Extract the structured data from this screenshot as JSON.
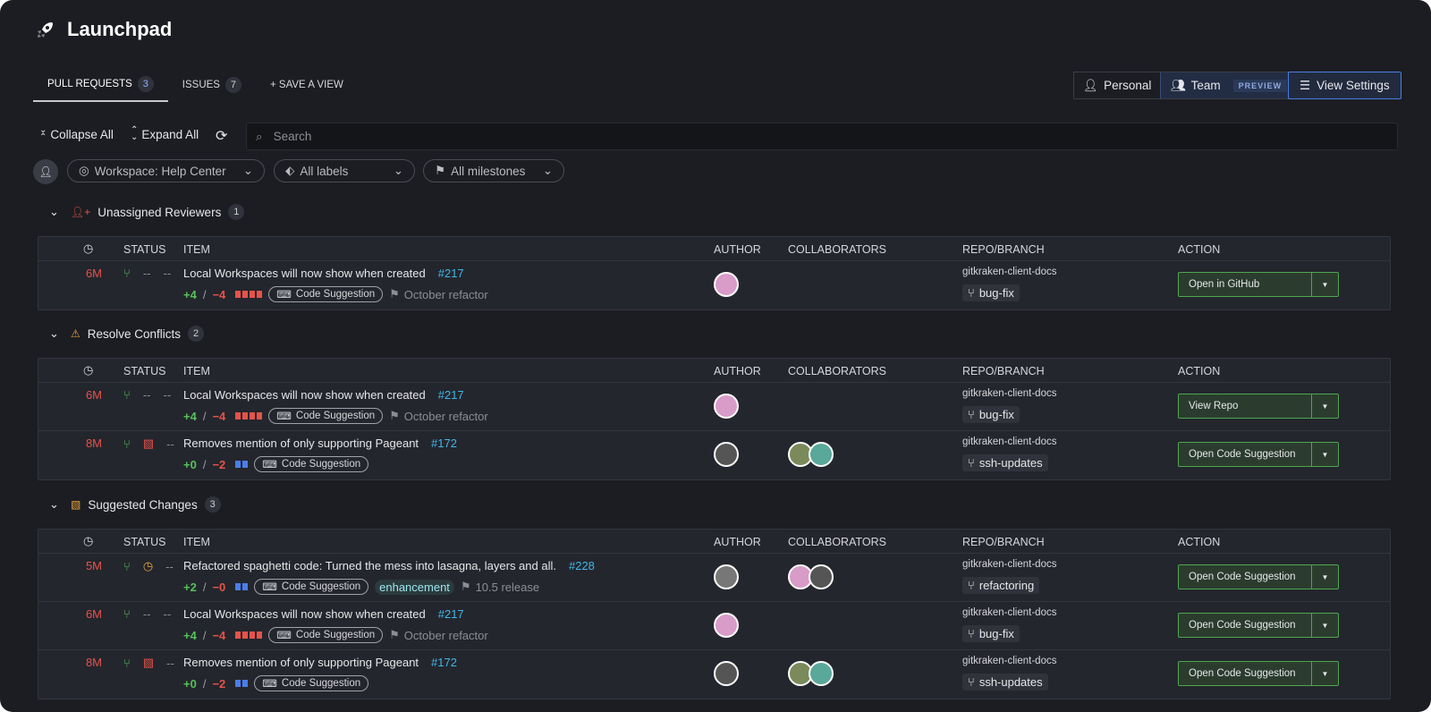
{
  "app": {
    "title": "Launchpad",
    "icon": "rocket-icon"
  },
  "tabs": [
    {
      "label": "PULL REQUESTS",
      "count": "3",
      "active": true
    },
    {
      "label": "ISSUES",
      "count": "7"
    },
    {
      "label": "+ SAVE A VIEW"
    }
  ],
  "view_toggle": {
    "personal": "Personal",
    "team": "Team",
    "preview": "PREVIEW",
    "view_settings": "View Settings"
  },
  "toolbar": {
    "collapse_all": "Collapse All",
    "expand_all": "Expand All",
    "search_placeholder": "Search"
  },
  "filters": {
    "workspace": "Workspace: Help Center",
    "labels": "All labels",
    "milestones": "All milestones"
  },
  "columns": {
    "status": "STATUS",
    "item": "ITEM",
    "author": "AUTHOR",
    "collaborators": "COLLABORATORS",
    "repo": "REPO/BRANCH",
    "action": "ACTION"
  },
  "colors": {
    "accent": "#4a7ee8",
    "add": "#56c25a",
    "del": "#e5534b",
    "link": "#3fb8e8",
    "action_border": "#4ea650"
  },
  "sections": [
    {
      "title": "Unassigned Reviewers",
      "count": "1",
      "icon": "user-plus-icon",
      "icon_color": "#e5534b",
      "rows": [
        {
          "age": "6M",
          "review": "--",
          "checks": "--",
          "title": "Local Workspaces will now show when created",
          "number": "#217",
          "adds": "+4",
          "dels": "−4",
          "blocks": [
            "red",
            "red",
            "red",
            "red"
          ],
          "tag": "Code Suggestion",
          "milestone": "October refactor",
          "author_color": "#d99bc8",
          "collaborators": [],
          "repo": "gitkraken-client-docs",
          "branch": "bug-fix",
          "action": "Open in GitHub"
        }
      ]
    },
    {
      "title": "Resolve Conflicts",
      "count": "2",
      "icon": "warning-icon",
      "icon_color": "#e8a33d",
      "rows": [
        {
          "age": "6M",
          "review": "--",
          "checks": "--",
          "title": "Local Workspaces will now show when created",
          "number": "#217",
          "adds": "+4",
          "dels": "−4",
          "blocks": [
            "red",
            "red",
            "red",
            "red"
          ],
          "tag": "Code Suggestion",
          "milestone": "October refactor",
          "author_color": "#d99bc8",
          "collaborators": [],
          "repo": "gitkraken-client-docs",
          "branch": "bug-fix",
          "action": "View Repo"
        },
        {
          "age": "8M",
          "review": "file-diff",
          "checks": "--",
          "title": "Removes mention of only supporting Pageant",
          "number": "#172",
          "adds": "+0",
          "dels": "−2",
          "blocks": [
            "blue",
            "blue"
          ],
          "tag": "Code Suggestion",
          "milestone": "",
          "author_color": "#555",
          "collaborators": [
            "#7a8a5a",
            "#5aa89a"
          ],
          "repo": "gitkraken-client-docs",
          "branch": "ssh-updates",
          "action": "Open Code Suggestion"
        }
      ]
    },
    {
      "title": "Suggested Changes",
      "count": "3",
      "icon": "file-diff-icon",
      "icon_color": "#e8a33d",
      "rows": [
        {
          "age": "5M",
          "review": "clock",
          "checks": "--",
          "title": "Refactored spaghetti code: Turned the mess into lasagna, layers and all.",
          "number": "#228",
          "adds": "+2",
          "dels": "−0",
          "blocks": [
            "blue",
            "blue"
          ],
          "tag": "Code Suggestion",
          "label": "enhancement",
          "milestone": "10.5 release",
          "author_color": "#777",
          "collaborators": [
            "#d99bc8",
            "#555"
          ],
          "repo": "gitkraken-client-docs",
          "branch": "refactoring",
          "action": "Open Code Suggestion"
        },
        {
          "age": "6M",
          "review": "--",
          "checks": "--",
          "title": "Local Workspaces will now show when created",
          "number": "#217",
          "adds": "+4",
          "dels": "−4",
          "blocks": [
            "red",
            "red",
            "red",
            "red"
          ],
          "tag": "Code Suggestion",
          "milestone": "October refactor",
          "author_color": "#d99bc8",
          "collaborators": [],
          "repo": "gitkraken-client-docs",
          "branch": "bug-fix",
          "action": "Open Code Suggestion"
        },
        {
          "age": "8M",
          "review": "file-diff",
          "checks": "--",
          "title": "Removes mention of only supporting Pageant",
          "number": "#172",
          "adds": "+0",
          "dels": "−2",
          "blocks": [
            "blue",
            "blue"
          ],
          "tag": "Code Suggestion",
          "milestone": "",
          "author_color": "#555",
          "collaborators": [
            "#7a8a5a",
            "#5aa89a"
          ],
          "repo": "gitkraken-client-docs",
          "branch": "ssh-updates",
          "action": "Open Code Suggestion"
        }
      ]
    }
  ]
}
